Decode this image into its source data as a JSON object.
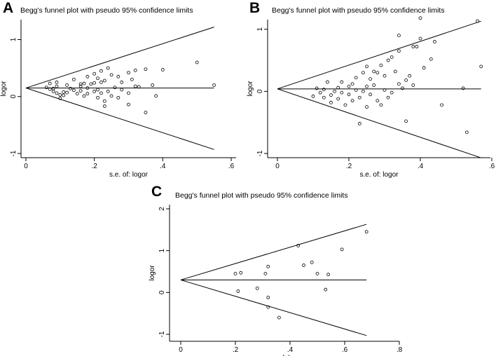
{
  "panels": [
    {
      "letter": "A"
    },
    {
      "letter": "B"
    },
    {
      "letter": "C"
    }
  ],
  "chart_data": [
    {
      "type": "scatter",
      "panel": "A",
      "title": "Begg's funnel plot with pseudo 95% confidence limits",
      "xlabel": "s.e. of: logor",
      "ylabel": "logor",
      "xlim": [
        0,
        0.6
      ],
      "ylim": [
        -1,
        1.4
      ],
      "x_ticks": [
        0,
        0.2,
        0.4,
        0.6
      ],
      "x_tick_labels": [
        "0",
        ".2",
        ".4",
        ".6"
      ],
      "y_ticks": [
        -1,
        0,
        1
      ],
      "y_tick_labels": [
        "-1",
        "0",
        "1"
      ],
      "pooled_estimate": 0.15,
      "confidence_limits": {
        "se_max": 0.55,
        "upper_end": 1.22,
        "lower_end": -0.93
      },
      "points": [
        {
          "x": 0.06,
          "y": 0.16
        },
        {
          "x": 0.07,
          "y": 0.23
        },
        {
          "x": 0.07,
          "y": 0.13
        },
        {
          "x": 0.08,
          "y": 0.14
        },
        {
          "x": 0.08,
          "y": 0.09
        },
        {
          "x": 0.09,
          "y": 0.25
        },
        {
          "x": 0.09,
          "y": 0.18
        },
        {
          "x": 0.09,
          "y": 0.06
        },
        {
          "x": 0.1,
          "y": 0.03
        },
        {
          "x": 0.1,
          "y": -0.03
        },
        {
          "x": 0.11,
          "y": 0.08
        },
        {
          "x": 0.11,
          "y": 0.02
        },
        {
          "x": 0.12,
          "y": 0.2
        },
        {
          "x": 0.12,
          "y": 0.07
        },
        {
          "x": 0.13,
          "y": 0.14
        },
        {
          "x": 0.14,
          "y": 0.3
        },
        {
          "x": 0.14,
          "y": 0.11
        },
        {
          "x": 0.15,
          "y": 0.05
        },
        {
          "x": 0.16,
          "y": 0.22
        },
        {
          "x": 0.16,
          "y": 0.18
        },
        {
          "x": 0.16,
          "y": 0.1
        },
        {
          "x": 0.17,
          "y": 0.23
        },
        {
          "x": 0.17,
          "y": 0.01
        },
        {
          "x": 0.18,
          "y": 0.35
        },
        {
          "x": 0.18,
          "y": 0.15
        },
        {
          "x": 0.18,
          "y": 0.05
        },
        {
          "x": 0.19,
          "y": 0.22
        },
        {
          "x": 0.2,
          "y": 0.4
        },
        {
          "x": 0.2,
          "y": 0.24
        },
        {
          "x": 0.2,
          "y": 0.09
        },
        {
          "x": 0.21,
          "y": 0.32
        },
        {
          "x": 0.21,
          "y": 0.12
        },
        {
          "x": 0.21,
          "y": -0.02
        },
        {
          "x": 0.22,
          "y": 0.45
        },
        {
          "x": 0.22,
          "y": 0.25
        },
        {
          "x": 0.22,
          "y": 0.06
        },
        {
          "x": 0.23,
          "y": 0.28
        },
        {
          "x": 0.23,
          "y": -0.08
        },
        {
          "x": 0.23,
          "y": -0.17
        },
        {
          "x": 0.24,
          "y": 0.5
        },
        {
          "x": 0.24,
          "y": 0.09
        },
        {
          "x": 0.25,
          "y": 0.38
        },
        {
          "x": 0.25,
          "y": 0.01
        },
        {
          "x": 0.26,
          "y": 0.16
        },
        {
          "x": 0.27,
          "y": 0.35
        },
        {
          "x": 0.27,
          "y": -0.02
        },
        {
          "x": 0.28,
          "y": 0.25
        },
        {
          "x": 0.28,
          "y": 0.12
        },
        {
          "x": 0.3,
          "y": 0.42
        },
        {
          "x": 0.3,
          "y": 0.06
        },
        {
          "x": 0.3,
          "y": -0.14
        },
        {
          "x": 0.31,
          "y": 0.3
        },
        {
          "x": 0.32,
          "y": 0.46
        },
        {
          "x": 0.32,
          "y": 0.18
        },
        {
          "x": 0.33,
          "y": 0.17
        },
        {
          "x": 0.35,
          "y": 0.48
        },
        {
          "x": 0.35,
          "y": -0.28
        },
        {
          "x": 0.37,
          "y": 0.2
        },
        {
          "x": 0.38,
          "y": 0.01
        },
        {
          "x": 0.4,
          "y": 0.47
        },
        {
          "x": 0.5,
          "y": 0.6
        },
        {
          "x": 0.55,
          "y": 0.2
        }
      ]
    },
    {
      "type": "scatter",
      "panel": "B",
      "title": "Begg's funnel plot with pseudo 95% confidence limits",
      "xlabel": "s.e. of: logor",
      "ylabel": "logor",
      "xlim": [
        0,
        0.6
      ],
      "ylim": [
        -1,
        1.2
      ],
      "x_ticks": [
        0,
        0.2,
        0.4,
        0.6
      ],
      "x_tick_labels": [
        "0",
        ".2",
        ".4",
        ".6"
      ],
      "y_ticks": [
        -1,
        0,
        1
      ],
      "y_tick_labels": [
        "-1",
        "0",
        "1"
      ],
      "pooled_estimate": 0.04,
      "confidence_limits": {
        "se_max": 0.57,
        "upper_end": 1.13,
        "lower_end": -1.07
      },
      "points": [
        {
          "x": 0.1,
          "y": -0.08
        },
        {
          "x": 0.11,
          "y": 0.05
        },
        {
          "x": 0.12,
          "y": -0.02
        },
        {
          "x": 0.13,
          "y": -0.1
        },
        {
          "x": 0.13,
          "y": 0.03
        },
        {
          "x": 0.14,
          "y": 0.15
        },
        {
          "x": 0.15,
          "y": -0.06
        },
        {
          "x": 0.15,
          "y": -0.18
        },
        {
          "x": 0.16,
          "y": 0.0
        },
        {
          "x": 0.17,
          "y": 0.06
        },
        {
          "x": 0.17,
          "y": -0.12
        },
        {
          "x": 0.18,
          "y": 0.15
        },
        {
          "x": 0.18,
          "y": -0.02
        },
        {
          "x": 0.19,
          "y": -0.22
        },
        {
          "x": 0.2,
          "y": 0.08
        },
        {
          "x": 0.2,
          "y": -0.05
        },
        {
          "x": 0.21,
          "y": 0.12
        },
        {
          "x": 0.21,
          "y": -0.15
        },
        {
          "x": 0.22,
          "y": 0.22
        },
        {
          "x": 0.22,
          "y": 0.02
        },
        {
          "x": 0.23,
          "y": -0.1
        },
        {
          "x": 0.23,
          "y": -0.52
        },
        {
          "x": 0.24,
          "y": 0.3
        },
        {
          "x": 0.24,
          "y": 0.0
        },
        {
          "x": 0.25,
          "y": 0.4
        },
        {
          "x": 0.25,
          "y": 0.08
        },
        {
          "x": 0.25,
          "y": -0.25
        },
        {
          "x": 0.26,
          "y": 0.2
        },
        {
          "x": 0.26,
          "y": -0.05
        },
        {
          "x": 0.27,
          "y": 0.32
        },
        {
          "x": 0.27,
          "y": 0.1
        },
        {
          "x": 0.28,
          "y": 0.3
        },
        {
          "x": 0.28,
          "y": -0.15
        },
        {
          "x": 0.29,
          "y": 0.42
        },
        {
          "x": 0.29,
          "y": -0.22
        },
        {
          "x": 0.3,
          "y": 0.25
        },
        {
          "x": 0.3,
          "y": 0.02
        },
        {
          "x": 0.31,
          "y": 0.5
        },
        {
          "x": 0.31,
          "y": -0.1
        },
        {
          "x": 0.32,
          "y": 0.55
        },
        {
          "x": 0.32,
          "y": -0.02
        },
        {
          "x": 0.33,
          "y": 0.32
        },
        {
          "x": 0.34,
          "y": 0.9
        },
        {
          "x": 0.34,
          "y": 0.65
        },
        {
          "x": 0.34,
          "y": 0.12
        },
        {
          "x": 0.35,
          "y": 0.05
        },
        {
          "x": 0.36,
          "y": 0.18
        },
        {
          "x": 0.36,
          "y": -0.48
        },
        {
          "x": 0.37,
          "y": 0.25
        },
        {
          "x": 0.38,
          "y": 0.72
        },
        {
          "x": 0.38,
          "y": 0.1
        },
        {
          "x": 0.39,
          "y": 0.72
        },
        {
          "x": 0.4,
          "y": 1.18
        },
        {
          "x": 0.4,
          "y": 0.85
        },
        {
          "x": 0.41,
          "y": 0.38
        },
        {
          "x": 0.43,
          "y": 0.52
        },
        {
          "x": 0.44,
          "y": 0.8
        },
        {
          "x": 0.46,
          "y": -0.22
        },
        {
          "x": 0.52,
          "y": 0.05
        },
        {
          "x": 0.53,
          "y": -0.66
        },
        {
          "x": 0.56,
          "y": 1.13
        },
        {
          "x": 0.57,
          "y": 0.4
        }
      ]
    },
    {
      "type": "scatter",
      "panel": "C",
      "title": "Begg's funnel plot with pseudo 95% confidence limits",
      "xlabel": "s.e. of: logor",
      "ylabel": "logor",
      "xlim": [
        0,
        0.8
      ],
      "ylim": [
        -1.1,
        2.1
      ],
      "x_ticks": [
        0,
        0.2,
        0.4,
        0.6,
        0.8
      ],
      "x_tick_labels": [
        "0",
        ".2",
        ".4",
        ".6",
        ".8"
      ],
      "y_ticks": [
        -1,
        0,
        1,
        2
      ],
      "y_tick_labels": [
        "-1",
        "0",
        "1",
        "2"
      ],
      "pooled_estimate": 0.3,
      "confidence_limits": {
        "se_max": 0.68,
        "upper_end": 1.63,
        "lower_end": -1.03
      },
      "points": [
        {
          "x": 0.2,
          "y": 0.45
        },
        {
          "x": 0.21,
          "y": 0.03
        },
        {
          "x": 0.22,
          "y": 0.47
        },
        {
          "x": 0.28,
          "y": 0.1
        },
        {
          "x": 0.31,
          "y": 0.45
        },
        {
          "x": 0.32,
          "y": 0.62
        },
        {
          "x": 0.32,
          "y": -0.12
        },
        {
          "x": 0.32,
          "y": -0.35
        },
        {
          "x": 0.36,
          "y": -0.6
        },
        {
          "x": 0.43,
          "y": 1.12
        },
        {
          "x": 0.45,
          "y": 0.65
        },
        {
          "x": 0.48,
          "y": 0.72
        },
        {
          "x": 0.5,
          "y": 0.45
        },
        {
          "x": 0.53,
          "y": 0.07
        },
        {
          "x": 0.54,
          "y": 0.43
        },
        {
          "x": 0.59,
          "y": 1.03
        },
        {
          "x": 0.68,
          "y": 1.45
        }
      ]
    }
  ]
}
